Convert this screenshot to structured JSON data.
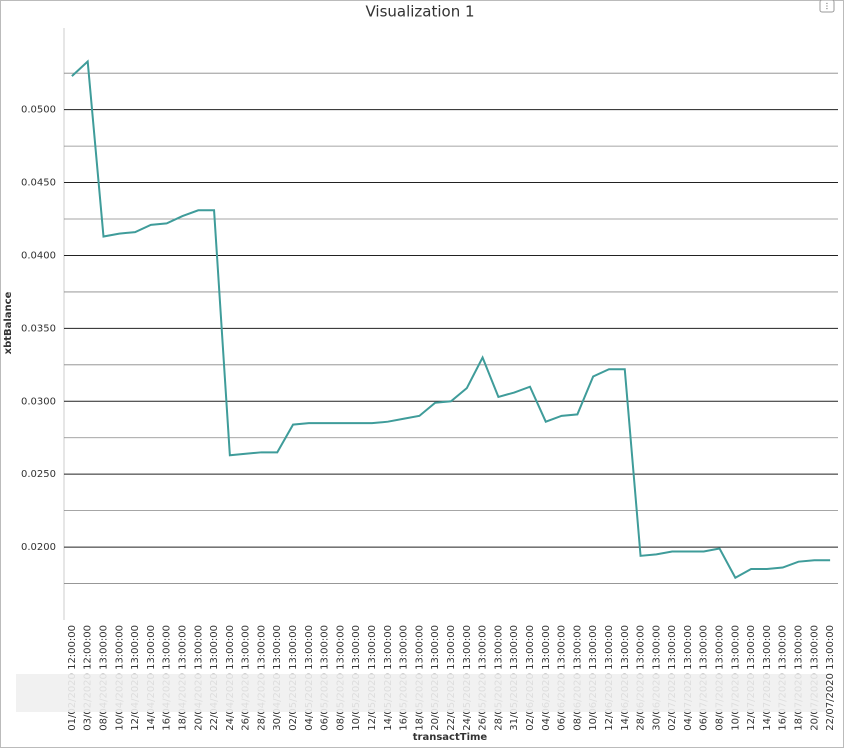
{
  "chart_data": {
    "type": "line",
    "title": "Visualization 1",
    "x_label": "transactTime",
    "y_label": "xbtBalance",
    "categories": [
      "01/02/2020 12:00:00",
      "03/02/2020 12:00:00",
      "08/04/2020 13:00:00",
      "10/04/2020 13:00:00",
      "12/04/2020 13:00:00",
      "14/04/2020 13:00:00",
      "16/04/2020 13:00:00",
      "18/04/2020 13:00:00",
      "20/04/2020 13:00:00",
      "22/04/2020 13:00:00",
      "24/04/2020 13:00:00",
      "26/04/2020 13:00:00",
      "28/04/2020 13:00:00",
      "30/04/2020 13:00:00",
      "02/05/2020 13:00:00",
      "04/05/2020 13:00:00",
      "06/05/2020 13:00:00",
      "08/05/2020 13:00:00",
      "10/05/2020 13:00:00",
      "12/05/2020 13:00:00",
      "14/05/2020 13:00:00",
      "16/05/2020 13:00:00",
      "18/05/2020 13:00:00",
      "20/05/2020 13:00:00",
      "22/05/2020 13:00:00",
      "24/05/2020 13:00:00",
      "26/05/2020 13:00:00",
      "28/05/2020 13:00:00",
      "31/05/2020 13:00:00",
      "02/06/2020 13:00:00",
      "04/06/2020 13:00:00",
      "06/06/2020 13:00:00",
      "08/06/2020 13:00:00",
      "10/06/2020 13:00:00",
      "12/06/2020 13:00:00",
      "14/06/2020 13:00:00",
      "28/06/2020 13:00:00",
      "30/06/2020 13:00:00",
      "02/07/2020 13:00:00",
      "04/07/2020 13:00:00",
      "06/07/2020 13:00:00",
      "08/07/2020 13:00:00",
      "10/07/2020 13:00:00",
      "12/07/2020 13:00:00",
      "14/07/2020 13:00:00",
      "16/07/2020 13:00:00",
      "18/07/2020 13:00:00",
      "20/07/2020 13:00:00",
      "22/07/2020 13:00:00"
    ],
    "series": [
      {
        "name": "xbtBalance",
        "color": "#3f9c9a",
        "values": [
          0.0523,
          0.0533,
          0.0413,
          0.0415,
          0.0416,
          0.0421,
          0.0422,
          0.0427,
          0.0431,
          0.0431,
          0.0263,
          0.0264,
          0.0265,
          0.0265,
          0.0284,
          0.0285,
          0.0285,
          0.0285,
          0.0285,
          0.0285,
          0.0286,
          0.0288,
          0.029,
          0.0299,
          0.03,
          0.0309,
          0.033,
          0.0303,
          0.0306,
          0.031,
          0.0286,
          0.029,
          0.0291,
          0.0317,
          0.0322,
          0.0322,
          0.0194,
          0.0195,
          0.0197,
          0.0197,
          0.0197,
          0.0199,
          0.0179,
          0.0185,
          0.0185,
          0.0186,
          0.019,
          0.0191,
          0.0191
        ]
      }
    ],
    "ylim": [
      0.015,
      0.0556
    ],
    "yticks": [
      {
        "value": 0.02,
        "label": "0.0200"
      },
      {
        "value": 0.025,
        "label": "0.0250"
      },
      {
        "value": 0.03,
        "label": "0.0300"
      },
      {
        "value": 0.035,
        "label": "0.0350"
      },
      {
        "value": 0.04,
        "label": "0.0400"
      },
      {
        "value": 0.045,
        "label": "0.0450"
      },
      {
        "value": 0.05,
        "label": "0.0500"
      }
    ],
    "minor_grid": [
      0.0175,
      0.0225,
      0.0275,
      0.0325,
      0.0375,
      0.0425,
      0.0475,
      0.0525
    ],
    "grid": true
  }
}
